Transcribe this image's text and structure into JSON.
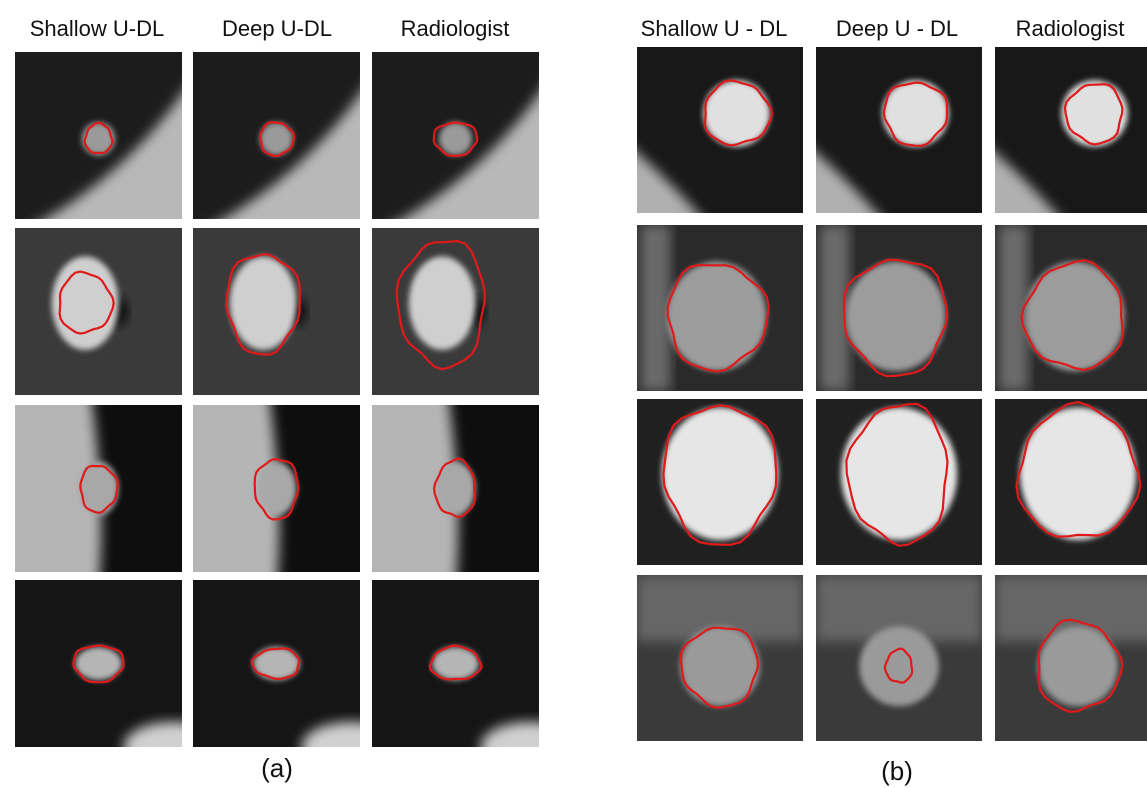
{
  "panels": [
    {
      "headers": [
        "Shallow U-DL",
        "Deep U-DL",
        "Radiologist"
      ],
      "label": "(a)"
    },
    {
      "headers": [
        "Shallow U - DL",
        "Deep U - DL",
        "Radiologist"
      ],
      "label": "(b)"
    }
  ]
}
